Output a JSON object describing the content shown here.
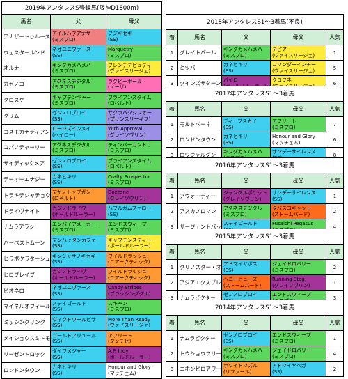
{
  "left": {
    "title": "2019年アンタレスS登録馬(阪神D1800m)",
    "headers": {
      "name": "馬名",
      "sire": "父",
      "dam_sire": "母父"
    },
    "rows": [
      {
        "name": "アナザートゥルース",
        "sire": [
          "アイルハヴアナザー",
          "(ミスプロ)"
        ],
        "sire_color": "#f07f7f",
        "dam": [
          "フジキセキ",
          "(SS)"
        ],
        "dam_color": "#3fd0f0"
      },
      {
        "name": "ウェスタールンド",
        "sire": [
          "ネオユニヴァース",
          "(SS)"
        ],
        "sire_color": "#3fd0f0",
        "dam": [
          "Marquetry",
          "(ミスプロ)"
        ],
        "dam_color": "#5cd65c"
      },
      {
        "name": "オルナ",
        "sire": [
          "キングカメハメハ",
          "(ミスプロ)"
        ],
        "sire_color": "#5cd65c",
        "dam": [
          "フレンチデピュティ",
          "(ヴァイスリージェ)"
        ],
        "dam_color": "#ffeb3b"
      },
      {
        "name": "カゼノコ",
        "sire": [
          "アグネスデジタル",
          "(ミスプロ)"
        ],
        "sire_color": "#5cd65c",
        "dam": [
          "ラグビーボール",
          "(ノーザ)"
        ],
        "dam_color": "#ff6fb5"
      },
      {
        "name": "クロスケ",
        "sire": [
          "キャプテンキャー",
          "(ミスプロ)"
        ],
        "sire_color": "#5cd65c",
        "dam": [
          "ブライアンズタイム",
          "(ロベルト)"
        ],
        "dam_color": "#5cd65c"
      },
      {
        "name": "グリム",
        "sire": [
          "ゼンノロブロイ",
          "(SS)"
        ],
        "sire_color": "#3fd0f0",
        "dam": [
          "サクラバクシンオー",
          "(プリンスリーギフ)"
        ],
        "dam_color": "#9b8fe6"
      },
      {
        "name": "コスモカナディアン",
        "sire": [
          "ロージズインメイ",
          "(ヘイロー)"
        ],
        "sire_color": "#3fd0f0",
        "dam": [
          "With Approval",
          "(グレイソヴリン)"
        ],
        "dam_color": "#9b8fe6"
      },
      {
        "name": "コパノチャーリー",
        "sire": [
          "アグネスデジタル",
          "(ミスプロ)"
        ],
        "sire_color": "#5cd65c",
        "dam": [
          "ティンバーカントリ",
          "(ミスプロ)"
        ],
        "dam_color": "#5cd65c"
      },
      {
        "name": "ザイディックメア",
        "sire": [
          "ゼンノロブロイ",
          "(SS)"
        ],
        "sire_color": "#3fd0f0",
        "dam": [
          "ブライアンズタイム",
          "(ロベルト)"
        ],
        "dam_color": "#5cd65c"
      },
      {
        "name": "テーオーエナジー",
        "sire": [
          "カネヒキリ",
          "(SS)"
        ],
        "sire_color": "#3fd0f0",
        "dam": [
          "Crafty Prospector",
          "(ミスプロ)"
        ],
        "dam_color": "#5cd65c"
      },
      {
        "name": "トラキチシャチョウ",
        "sire": [
          "マヤノトップガン",
          "(ロベルト)"
        ],
        "sire_color": "#ff9933",
        "dam": [
          "Dozzene",
          "(グレイソヴリン)"
        ],
        "dam_color": "#a4349a"
      },
      {
        "name": "ドライヴナイト",
        "sire": [
          "カジノドライヴ",
          "(ボールドルーラー)"
        ],
        "sire_color": "#a4349a",
        "dam": [
          "ハブルガムフェロー",
          "(SS)"
        ],
        "dam_color": "#3fd0f0"
      },
      {
        "name": "ナムラアラシ",
        "sire": [
          "エンパイアメーカー",
          "(ミスプロ)"
        ],
        "sire_color": "#5cd65c",
        "dam": [
          "エンドスウィープ",
          "(ミスプロ)"
        ],
        "dam_color": "#5cd65c"
      },
      {
        "name": "ハーベストムーン",
        "sire": [
          "マンハッタンカフェ",
          "(SS)"
        ],
        "sire_color": "#3fd0f0",
        "dam": [
          "キャプテンスティー",
          "(ボールドルーラー)"
        ],
        "dam_color": "#ffeb3b"
      },
      {
        "name": "ヒラボクラターシュ",
        "sire": [
          "キンシャサノキセキ",
          "(SS)"
        ],
        "sire_color": "#3fd0f0",
        "dam": [
          "ワイルドラッシュ",
          "(ニアークティック)"
        ],
        "dam_color": "#ff9933"
      },
      {
        "name": "ヒロブレイブ",
        "sire": [
          "カジノドライヴ",
          "(ボールドルーラー)"
        ],
        "sire_color": "#a4349a",
        "dam": [
          "ワイルドラッシュ",
          "(ニアークティック)"
        ],
        "dam_color": "#ff9933"
      },
      {
        "name": "ピオネロ",
        "sire": [
          "ネオユニヴァース",
          "(SS)"
        ],
        "sire_color": "#3fd0f0",
        "dam": [
          "Candy Stripes",
          "(ブラッシンググル)"
        ],
        "dam_color": "#a4349a"
      },
      {
        "name": "マイネルオフィール",
        "sire": [
          "ステイゴールド",
          "(SS)"
        ],
        "sire_color": "#3fd0f0",
        "dam": [
          "スキャン",
          "(ミスプロ)"
        ],
        "dam_color": "#5cd65c"
      },
      {
        "name": "ミッシングリンク",
        "sire": [
          "ヴィクトワールピサ",
          "(SS)"
        ],
        "sire_color": "#3fd0f0",
        "dam": [
          "More Than Ready",
          "(ヴァイスリージェ)"
        ],
        "dam_color": "#3fd0f0"
      },
      {
        "name": "メイショウスミトモ",
        "sire": [
          "ゴールドアリュール",
          "(SS)"
        ],
        "sire_color": "#3fd0f0",
        "dam": [
          "アフリート",
          "(ダンチヒ)"
        ],
        "dam_color": "#ff9933"
      },
      {
        "name": "リーゼントロック",
        "sire": [
          "ダイワメジャー",
          "(SS)"
        ],
        "sire_color": "#3fd0f0",
        "dam": [
          "A.P. Indy",
          "(ボールドルーラー)"
        ],
        "dam_color": "#a4349a"
      },
      {
        "name": "ロンドンタウン",
        "sire": [
          "カネヒキリ",
          "(SS)"
        ],
        "sire_color": "#3fd0f0",
        "dam": [
          "Honour and Glory",
          "(マッチェム)"
        ],
        "dam_color": "#ffffff"
      }
    ]
  },
  "right": {
    "headers": {
      "rank": "着",
      "name": "馬名",
      "sire": "父",
      "dam_sire": "母父",
      "pop": "人気"
    },
    "years": [
      {
        "title": "2018年アンタレスS1～3着馬(不良)",
        "rows": [
          {
            "rank": "1",
            "name": "グレイトパール",
            "sire": [
              "キングカメハメハ",
              "(ミスプロ)"
            ],
            "sire_color": "#5cd65c",
            "dam": [
              "デピア",
              "(ヴァイスリージェ)"
            ],
            "dam_color": "#ffeb3b",
            "pop": "1"
          },
          {
            "rank": "2",
            "name": "ミツバ",
            "sire": [
              "カネヒキリ",
              "(SS)"
            ],
            "sire_color": "#3fd0f0",
            "dam": [
              "コマンダーインチー",
              "(ヴァイスリージェ)"
            ],
            "dam_color": "#ffeb3b",
            "pop": "5"
          },
          {
            "rank": "3",
            "name": "クインズサターン",
            "sire": [
              "パイロ",
              "(ボールドルーラー)"
            ],
            "sire_color": "#a4349a",
            "dam": [
              "クロフネ",
              "(ヴァイスリージェ)"
            ],
            "dam_color": "#ffeb3b",
            "pop": "6"
          }
        ]
      },
      {
        "title": "2017年アンタレスS1～3着馬",
        "rows": [
          {
            "rank": "1",
            "name": "モルトベーネ",
            "sire": [
              "ディープスカイ",
              "(SS)"
            ],
            "sire_color": "#3fd0f0",
            "dam": [
              "アフリート",
              "(ミスプロ)"
            ],
            "dam_color": "#5cd65c",
            "pop": "7"
          },
          {
            "rank": "2",
            "name": "ロンドンタウン",
            "sire": [
              "カネヒキリ",
              "(SS)"
            ],
            "sire_color": "#3fd0f0",
            "dam": [
              "Honour and Glory",
              "(マッチェム)"
            ],
            "dam_color": "#ffffff",
            "pop": "6"
          },
          {
            "rank": "3",
            "name": "ロワジャルダン",
            "sire": [
              "キングカメハメハ",
              "(ミスプロ)"
            ],
            "sire_color": "#5cd65c",
            "dam": [
              "サンデーサイレンス",
              "(SS)"
            ],
            "dam_color": "#3fd0f0",
            "pop": "8"
          }
        ]
      },
      {
        "title": "2016年アンタレスS1～3着馬",
        "rows": [
          {
            "rank": "1",
            "name": "アウォーディー",
            "sire": [
              "ジャングルポケット",
              "(グレイソヴリン)"
            ],
            "sire_color": "#a4349a",
            "dam": [
              "サンデーサイレンス",
              "(SS)"
            ],
            "dam_color": "#3fd0f0",
            "pop": "1"
          },
          {
            "rank": "2",
            "name": "アスカノロマン",
            "sire": [
              "アグネスデジタル",
              "(ミスプロ)"
            ],
            "sire_color": "#5cd65c",
            "dam": [
              "タバスコキャット",
              "(ストームバード)"
            ],
            "dam_color": "#ff6b1a",
            "pop": "2"
          },
          {
            "rank": "3",
            "name": "サージェントバッジ",
            "sire": [
              "ステイゴールド",
              "(SS)"
            ],
            "sire_color": "#3fd0f0",
            "dam": [
              "Fusaichi Pegasus",
              "(ミスプロ)"
            ],
            "dam_color": "#5cd65c",
            "pop": "4"
          }
        ]
      },
      {
        "title": "2015年アンタレスS1～3着馬",
        "rows": [
          {
            "rank": "1",
            "name": "クリノスター・オー",
            "sire": [
              "アドマイヤボス",
              "(SS)"
            ],
            "sire_color": "#3fd0f0",
            "dam": [
              "ジェイドロバリー",
              "(ミスプロ)"
            ],
            "dam_color": "#5cd65c",
            "pop": "2"
          },
          {
            "rank": "2",
            "name": "アジアエクスプレス",
            "sire": [
              "ヘニーヒューズ",
              "(ストームバード)"
            ],
            "sire_color": "#ff6b1a",
            "dam": [
              "Running Stag",
              "(グレイソヴリン)"
            ],
            "dam_color": "#a4349a",
            "pop": "1"
          },
          {
            "rank": "3",
            "name": "ナムラビクター",
            "sire": [
              "ゼンノロブロイ",
              "(SS)"
            ],
            "sire_color": "#3fd0f0",
            "dam": [
              "エンドスウィープ",
              "(ミスプロ)"
            ],
            "dam_color": "#5cd65c",
            "pop": "3"
          }
        ]
      },
      {
        "title": "2014年アンタレスS1～3着馬",
        "rows": [
          {
            "rank": "1",
            "name": "ナムラビクター",
            "sire": [
              "ゼンノロブロイ",
              "(SS)"
            ],
            "sire_color": "#3fd0f0",
            "dam": [
              "エンドスウィープ",
              "(ミスプロ)"
            ],
            "dam_color": "#5cd65c",
            "pop": "1"
          },
          {
            "rank": "2",
            "name": "トウショウフリーク",
            "sire": [
              "キングカメハメハ",
              "(ミスプロ)"
            ],
            "sire_color": "#5cd65c",
            "dam": [
              "ジェイドロバリー",
              "(ミスプロ)"
            ],
            "dam_color": "#5cd65c",
            "pop": "4"
          },
          {
            "rank": "3",
            "name": "ニホンピロアワーズ",
            "sire": [
              "ホワイトマズル",
              "(リファール)"
            ],
            "sire_color": "#ff9933",
            "dam": [
              "アドマイヤベガ",
              "(SS)"
            ],
            "dam_color": "#3fd0f0",
            "pop": "2"
          }
        ]
      }
    ]
  }
}
